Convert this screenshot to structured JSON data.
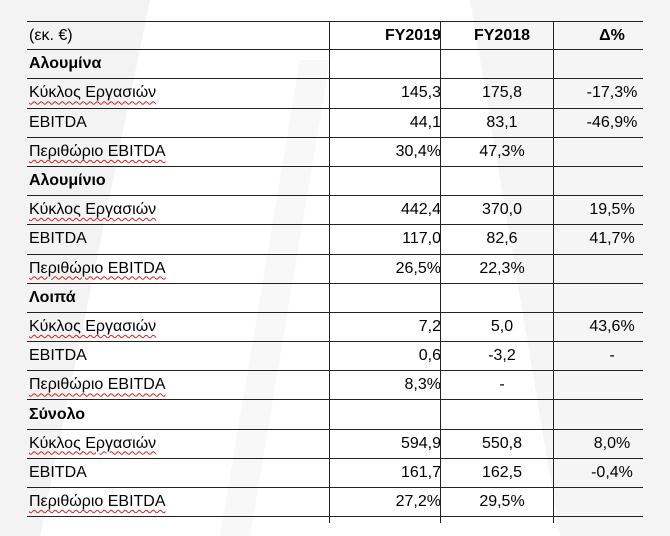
{
  "header": {
    "unit": "(εκ. €)",
    "col_fy2019": "FY2019",
    "col_fy2018": "FY2018",
    "col_delta": "Δ%"
  },
  "sections": [
    {
      "title": "Αλουμίνα",
      "rows": [
        {
          "label": "Κύκλος Εργασιών",
          "fy2019": "145,3",
          "fy2018": "175,8",
          "delta": "-17,3%"
        },
        {
          "label": "EBITDA",
          "fy2019": "44,1",
          "fy2018": "83,1",
          "delta": "-46,9%"
        },
        {
          "label": "Περιθώριο EBITDA",
          "fy2019": "30,4%",
          "fy2018": "47,3%",
          "delta": ""
        }
      ]
    },
    {
      "title": "Αλουμίνιο",
      "rows": [
        {
          "label": "Κύκλος Εργασιών",
          "fy2019": "442,4",
          "fy2018": "370,0",
          "delta": "19,5%"
        },
        {
          "label": "EBITDA",
          "fy2019": "117,0",
          "fy2018": "82,6",
          "delta": "41,7%"
        },
        {
          "label": "Περιθώριο EBITDA",
          "fy2019": "26,5%",
          "fy2018": "22,3%",
          "delta": ""
        }
      ]
    },
    {
      "title": "Λοιπά",
      "rows": [
        {
          "label": "Κύκλος Εργασιών",
          "fy2019": "7,2",
          "fy2018": "5,0",
          "delta": "43,6%"
        },
        {
          "label": "EBITDA",
          "fy2019": "0,6",
          "fy2018": "-3,2",
          "delta": "-"
        },
        {
          "label": "Περιθώριο EBITDA",
          "fy2019": "8,3%",
          "fy2018": "-",
          "delta": ""
        }
      ]
    },
    {
      "title": "Σύνολο",
      "rows": [
        {
          "label": "Κύκλος Εργασιών",
          "fy2019": "594,9",
          "fy2018": "550,8",
          "delta": "8,0%"
        },
        {
          "label": "EBITDA",
          "fy2019": "161,7",
          "fy2018": "162,5",
          "delta": "-0,4%"
        },
        {
          "label": "Περιθώριο EBITDA",
          "fy2019": "27,2%",
          "fy2018": "29,5%",
          "delta": ""
        }
      ]
    }
  ],
  "colors": {
    "background": "#ffffff",
    "watermark": "#f2f2f2",
    "grid": "#222222",
    "spellcheck": "#d02020"
  }
}
